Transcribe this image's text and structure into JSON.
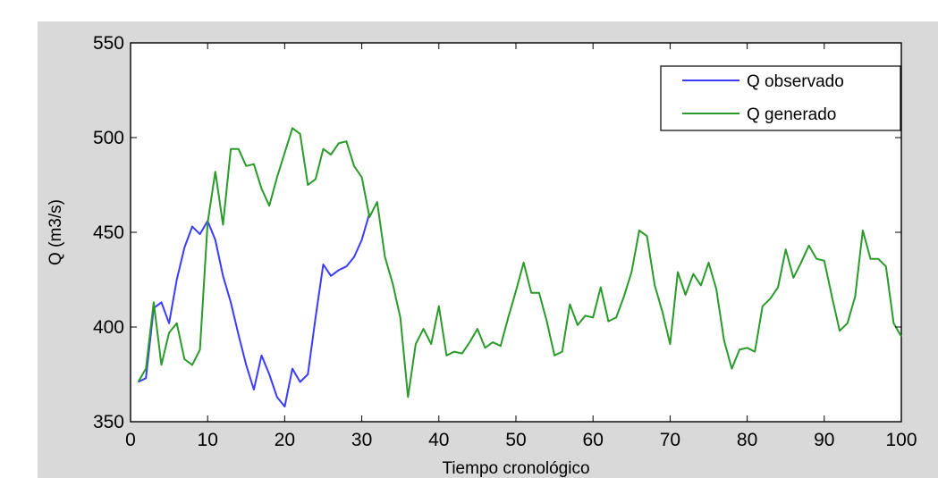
{
  "chart_data": {
    "type": "line",
    "title": "",
    "xlabel": "Tiempo cronológico",
    "ylabel": "Q (m3/s)",
    "xlim": [
      0,
      100
    ],
    "ylim": [
      350,
      550
    ],
    "xticks": [
      0,
      10,
      20,
      30,
      40,
      50,
      60,
      70,
      80,
      90,
      100
    ],
    "yticks": [
      350,
      400,
      450,
      500,
      550
    ],
    "grid": false,
    "legend_position": "top-right",
    "series": [
      {
        "name": "Q observado",
        "color": "#3b3bff",
        "x": [
          1,
          2,
          3,
          4,
          5,
          6,
          7,
          8,
          9,
          10,
          11,
          12,
          13,
          14,
          15,
          16,
          17,
          18,
          19,
          20,
          21,
          22,
          23,
          24,
          25,
          26,
          27,
          28,
          29,
          30,
          31
        ],
        "y": [
          371,
          373,
          410,
          413,
          402,
          425,
          442,
          453,
          449,
          456,
          446,
          427,
          413,
          396,
          380,
          367,
          385,
          375,
          363,
          358,
          378,
          371,
          375,
          405,
          433,
          427,
          430,
          432,
          437,
          446,
          460
        ]
      },
      {
        "name": "Q generado",
        "color": "#2a9a2a",
        "x": [
          1,
          2,
          3,
          4,
          5,
          6,
          7,
          8,
          9,
          10,
          11,
          12,
          13,
          14,
          15,
          16,
          17,
          18,
          19,
          20,
          21,
          22,
          23,
          24,
          25,
          26,
          27,
          28,
          29,
          30,
          31,
          32,
          33,
          34,
          35,
          36,
          37,
          38,
          39,
          40,
          41,
          42,
          43,
          44,
          45,
          46,
          47,
          48,
          49,
          50,
          51,
          52,
          53,
          54,
          55,
          56,
          57,
          58,
          59,
          60,
          61,
          62,
          63,
          64,
          65,
          66,
          67,
          68,
          69,
          70,
          71,
          72,
          73,
          74,
          75,
          76,
          77,
          78,
          79,
          80,
          81,
          82,
          83,
          84,
          85,
          86,
          87,
          88,
          89,
          90,
          91,
          92,
          93,
          94,
          95,
          96,
          97,
          98,
          99,
          100
        ],
        "y": [
          371,
          378,
          413,
          380,
          397,
          402,
          383,
          380,
          388,
          455,
          482,
          454,
          494,
          494,
          485,
          486,
          473,
          464,
          479,
          492,
          505,
          502,
          475,
          478,
          494,
          491,
          497,
          498,
          485,
          479,
          458,
          466,
          437,
          423,
          405,
          363,
          391,
          399,
          391,
          411,
          385,
          387,
          386,
          392,
          399,
          389,
          392,
          390,
          405,
          419,
          434,
          418,
          418,
          403,
          385,
          387,
          412,
          401,
          406,
          405,
          421,
          403,
          405,
          416,
          429,
          451,
          448,
          422,
          408,
          391,
          429,
          417,
          428,
          422,
          434,
          420,
          393,
          378,
          388,
          389,
          387,
          411,
          415,
          421,
          441,
          426,
          434,
          443,
          436,
          435,
          416,
          398,
          402,
          416,
          451,
          436,
          436,
          432,
          402,
          395
        ]
      }
    ]
  }
}
